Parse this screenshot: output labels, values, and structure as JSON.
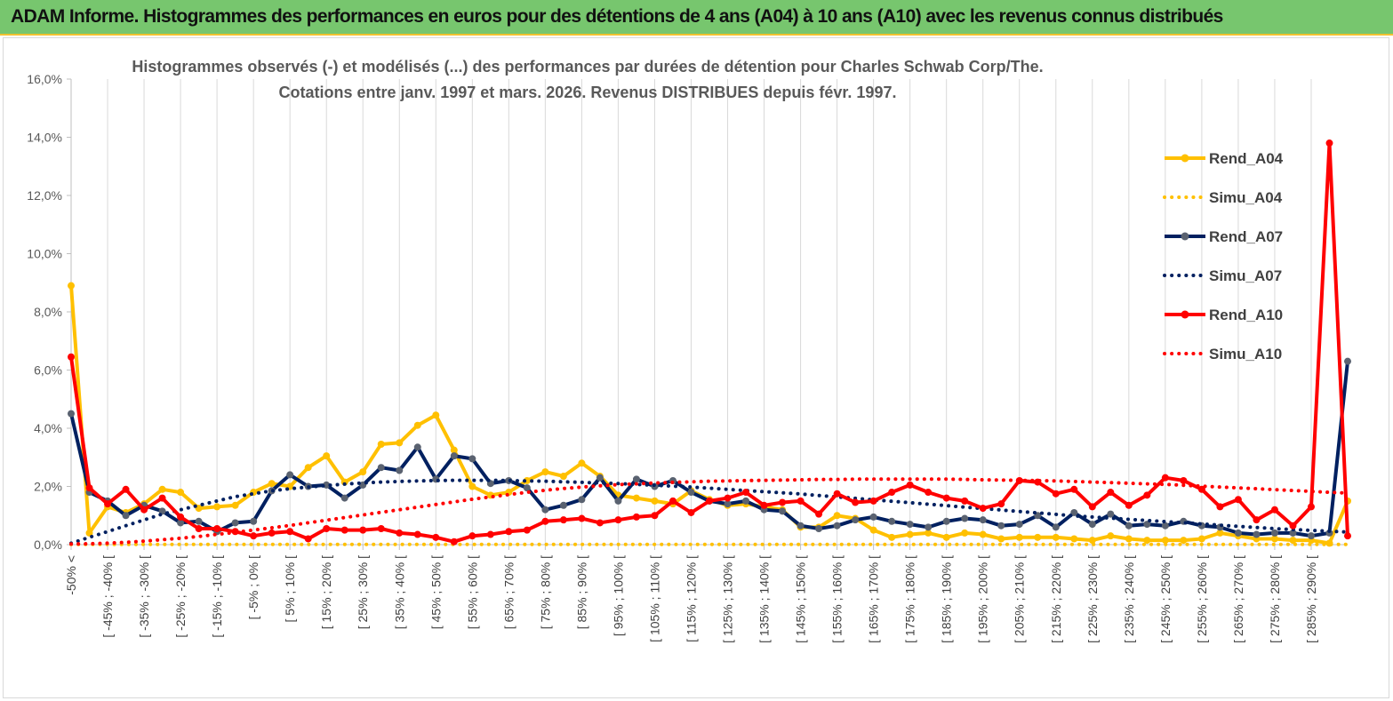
{
  "header": {
    "title": "ADAM Informe. Histogrammes des performances en euros pour des détentions de 4 ans (A04) à 10 ans (A10) avec les revenus connus distribués"
  },
  "chart_data": {
    "type": "line",
    "title_lines": [
      "Histogrammes observés (-) et modélisés (...) des performances par durées de détention pour Charles Schwab Corp/The.",
      "Cotations entre janv. 1997 et mars. 2026. Revenus DISTRIBUES depuis févr. 1997."
    ],
    "ylim": [
      0,
      16
    ],
    "y_ticks": [
      0,
      2,
      4,
      6,
      8,
      10,
      12,
      14,
      16
    ],
    "y_tick_labels": [
      "0,0%",
      "2,0%",
      "4,0%",
      "6,0%",
      "8,0%",
      "10,0%",
      "12,0%",
      "14,0%",
      "16,0%"
    ],
    "grid": "vertical",
    "x_count": 71,
    "x_tick_labels": [
      "-50% <",
      "[ -45% ; -40% [",
      "[ -35% ; -30% [",
      "[ -25% ; -20% [",
      "[ -15% ; -10% [",
      "[ -5% ; 0% [",
      "[ 5% ; 10% [",
      "[ 15% ; 20% [",
      "[ 25% ; 30% [",
      "[ 35% ; 40% [",
      "[ 45% ; 50% [",
      "[ 55% ; 60% [",
      "[ 65% ; 70% [",
      "[ 75% ; 80% [",
      "[ 85% ; 90% [",
      "[ 95% ; 100% [",
      "[ 105% ; 110% [",
      "[ 115% ; 120% [",
      "[ 125% ; 130% [",
      "[ 135% ; 140% [",
      "[ 145% ; 150% [",
      "[ 155% ; 160% [",
      "[ 165% ; 170% [",
      "[ 175% ; 180% [",
      "[ 185% ; 190% [",
      "[ 195% ; 200% [",
      "[ 205% ; 210% [",
      "[ 215% ; 220% [",
      "[ 225% ; 230% [",
      "[ 235% ; 240% [",
      "[ 245% ; 250% [",
      "[ 255% ; 260% [",
      "[ 265% ; 270% [",
      "[ 275% ; 280% [",
      "[ 285% ; 290% ["
    ],
    "legend_position": "right",
    "series": [
      {
        "name": "Rend_A04",
        "style": "solid",
        "color": "#ffc000",
        "values": [
          8.9,
          0.4,
          1.3,
          1.1,
          1.4,
          1.9,
          1.8,
          1.25,
          1.3,
          1.35,
          1.8,
          2.1,
          2.0,
          2.65,
          3.05,
          2.15,
          2.5,
          3.45,
          3.5,
          4.1,
          4.45,
          3.25,
          2.0,
          1.7,
          1.8,
          2.2,
          2.5,
          2.35,
          2.8,
          2.35,
          1.7,
          1.6,
          1.5,
          1.4,
          1.85,
          1.55,
          1.35,
          1.4,
          1.3,
          1.2,
          0.6,
          0.6,
          1.0,
          0.9,
          0.5,
          0.25,
          0.35,
          0.4,
          0.25,
          0.4,
          0.35,
          0.2,
          0.25,
          0.25,
          0.25,
          0.2,
          0.15,
          0.3,
          0.2,
          0.15,
          0.15,
          0.15,
          0.2,
          0.4,
          0.3,
          0.2,
          0.2,
          0.15,
          0.15,
          0.05,
          1.5
        ]
      },
      {
        "name": "Simu_A04",
        "style": "dotted",
        "color": "#ffc000",
        "values": [
          0.01,
          0.01,
          0.01,
          0.01,
          0.01,
          0.01,
          0.01,
          0.01,
          0.01,
          0.01,
          0.01,
          0.01,
          0.01,
          0.01,
          0.01,
          0.01,
          0.01,
          0.01,
          0.01,
          0.01,
          0.01,
          0.01,
          0.01,
          0.01,
          0.01,
          0.01,
          0.01,
          0.01,
          0.01,
          0.01,
          0.01,
          0.01,
          0.01,
          0.01,
          0.01,
          0.01,
          0.01,
          0.01,
          0.01,
          0.01,
          0.01,
          0.01,
          0.01,
          0.01,
          0.01,
          0.01,
          0.01,
          0.01,
          0.01,
          0.01,
          0.01,
          0.01,
          0.01,
          0.01,
          0.01,
          0.01,
          0.01,
          0.01,
          0.01,
          0.01,
          0.01,
          0.01,
          0.01,
          0.01,
          0.01,
          0.01,
          0.01,
          0.01,
          0.01,
          0.01,
          0.01
        ]
      },
      {
        "name": "Rend_A07",
        "style": "solid-marker",
        "color": "#002060",
        "values": [
          4.5,
          1.8,
          1.5,
          1.0,
          1.35,
          1.15,
          0.75,
          0.8,
          0.45,
          0.75,
          0.8,
          1.85,
          2.4,
          2.0,
          2.05,
          1.6,
          2.05,
          2.65,
          2.55,
          3.35,
          2.25,
          3.05,
          2.95,
          2.1,
          2.2,
          1.95,
          1.2,
          1.35,
          1.55,
          2.3,
          1.5,
          2.25,
          2.0,
          2.2,
          1.8,
          1.5,
          1.4,
          1.5,
          1.2,
          1.15,
          0.65,
          0.55,
          0.65,
          0.85,
          0.95,
          0.8,
          0.7,
          0.6,
          0.8,
          0.9,
          0.85,
          0.65,
          0.7,
          1.0,
          0.6,
          1.1,
          0.7,
          1.05,
          0.65,
          0.7,
          0.65,
          0.8,
          0.65,
          0.6,
          0.4,
          0.35,
          0.4,
          0.4,
          0.3,
          0.4,
          6.3
        ]
      },
      {
        "name": "Simu_A07",
        "style": "dotted",
        "color": "#002060",
        "values": [
          0.05,
          0.25,
          0.45,
          0.65,
          0.85,
          1.05,
          1.2,
          1.35,
          1.5,
          1.65,
          1.75,
          1.85,
          1.92,
          1.98,
          2.03,
          2.08,
          2.12,
          2.15,
          2.17,
          2.19,
          2.2,
          2.21,
          2.21,
          2.21,
          2.2,
          2.19,
          2.18,
          2.16,
          2.14,
          2.12,
          2.1,
          2.07,
          2.04,
          2.01,
          1.98,
          1.94,
          1.9,
          1.86,
          1.82,
          1.78,
          1.74,
          1.69,
          1.64,
          1.59,
          1.54,
          1.49,
          1.44,
          1.39,
          1.34,
          1.29,
          1.24,
          1.19,
          1.14,
          1.09,
          1.04,
          0.99,
          0.95,
          0.91,
          0.87,
          0.83,
          0.79,
          0.75,
          0.71,
          0.67,
          0.63,
          0.59,
          0.55,
          0.52,
          0.49,
          0.46,
          0.43
        ]
      },
      {
        "name": "Rend_A10",
        "style": "solid",
        "color": "#ff0000",
        "values": [
          6.45,
          1.95,
          1.4,
          1.9,
          1.2,
          1.6,
          0.95,
          0.55,
          0.55,
          0.45,
          0.3,
          0.4,
          0.45,
          0.2,
          0.55,
          0.5,
          0.5,
          0.55,
          0.4,
          0.35,
          0.25,
          0.1,
          0.3,
          0.35,
          0.45,
          0.5,
          0.8,
          0.85,
          0.9,
          0.75,
          0.85,
          0.95,
          1.0,
          1.5,
          1.1,
          1.5,
          1.6,
          1.8,
          1.35,
          1.45,
          1.5,
          1.05,
          1.75,
          1.45,
          1.5,
          1.8,
          2.05,
          1.8,
          1.6,
          1.5,
          1.25,
          1.4,
          2.2,
          2.15,
          1.75,
          1.9,
          1.3,
          1.8,
          1.35,
          1.7,
          2.3,
          2.2,
          1.9,
          1.3,
          1.55,
          0.85,
          1.2,
          0.65,
          1.3,
          13.8,
          0.3
        ]
      },
      {
        "name": "Simu_A10",
        "style": "dotted",
        "color": "#ff0000",
        "values": [
          0.02,
          0.03,
          0.05,
          0.08,
          0.12,
          0.17,
          0.22,
          0.28,
          0.35,
          0.42,
          0.5,
          0.58,
          0.66,
          0.75,
          0.84,
          0.93,
          1.02,
          1.11,
          1.2,
          1.29,
          1.38,
          1.47,
          1.56,
          1.64,
          1.72,
          1.8,
          1.87,
          1.93,
          1.98,
          2.02,
          2.06,
          2.09,
          2.12,
          2.14,
          2.16,
          2.18,
          2.19,
          2.2,
          2.21,
          2.22,
          2.23,
          2.24,
          2.24,
          2.25,
          2.25,
          2.25,
          2.25,
          2.25,
          2.25,
          2.24,
          2.23,
          2.22,
          2.21,
          2.2,
          2.19,
          2.17,
          2.15,
          2.13,
          2.11,
          2.09,
          2.07,
          2.04,
          2.01,
          1.98,
          1.95,
          1.92,
          1.89,
          1.86,
          1.83,
          1.8,
          1.77
        ]
      }
    ]
  }
}
